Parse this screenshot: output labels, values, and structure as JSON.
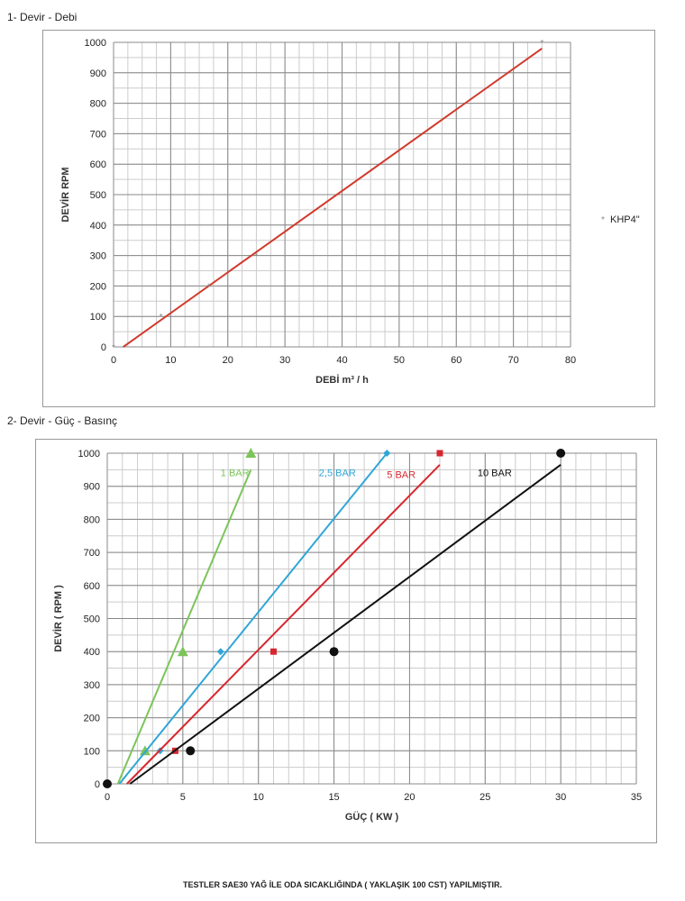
{
  "sections": {
    "s1": "1- Devir - Debi",
    "s2": "2- Devir - Güç - Basınç"
  },
  "footer": "TESTLER SAE30 YAĞ İLE ODA SICAKLIĞINDA ( YAKLAŞIK 100 CST) YAPILMIŞTIR.",
  "chart_data": [
    {
      "type": "scatter",
      "title": "",
      "xlabel": "DEBİ m³ / h",
      "ylabel": "DEVİR RPM",
      "xlim": [
        0,
        80
      ],
      "ylim": [
        0,
        1000
      ],
      "xticks": [
        0,
        10,
        20,
        30,
        40,
        50,
        60,
        70,
        80
      ],
      "yticks": [
        0,
        100,
        200,
        300,
        400,
        500,
        600,
        700,
        800,
        900,
        1000
      ],
      "grid": true,
      "legend": "right",
      "series": [
        {
          "name": "KHP4\"",
          "color": "#888888",
          "x": [
            0,
            8.3,
            16.7,
            25,
            37,
            75
          ],
          "y": [
            0,
            100,
            200,
            300,
            450,
            1000
          ],
          "trend": {
            "color": "#d03a2c",
            "x": [
              1.7,
              75
            ],
            "y": [
              0,
              980
            ]
          }
        }
      ]
    },
    {
      "type": "scatter",
      "title": "",
      "xlabel": "GÜÇ ( KW )",
      "ylabel": "DEVİR ( RPM )",
      "xlim": [
        0,
        35
      ],
      "ylim": [
        0,
        1000
      ],
      "xticks": [
        0,
        5,
        10,
        15,
        20,
        25,
        30,
        35
      ],
      "yticks": [
        0,
        100,
        200,
        300,
        400,
        500,
        600,
        700,
        800,
        900,
        1000
      ],
      "grid": true,
      "legend": "inline",
      "series": [
        {
          "name": "1 BAR",
          "color": "#7cc45a",
          "marker": "triangle",
          "x": [
            2.5,
            5,
            9.5
          ],
          "y": [
            100,
            400,
            1000
          ],
          "trend": {
            "x": [
              0.7,
              9.5
            ],
            "y": [
              0,
              950
            ]
          },
          "label_at": [
            7.5,
            930
          ]
        },
        {
          "name": "2,5 BAR",
          "color": "#2fa6d6",
          "marker": "diamond",
          "x": [
            3.5,
            7.5,
            18.5
          ],
          "y": [
            100,
            400,
            1000
          ],
          "trend": {
            "x": [
              0.8,
              18.5
            ],
            "y": [
              0,
              1000
            ]
          },
          "label_at": [
            14,
            930
          ]
        },
        {
          "name": "5 BAR",
          "color": "#d8262e",
          "marker": "square",
          "x": [
            4.5,
            11,
            22
          ],
          "y": [
            100,
            400,
            1000
          ],
          "trend": {
            "x": [
              1.3,
              22
            ],
            "y": [
              0,
              965
            ]
          },
          "label_at": [
            18.5,
            925
          ]
        },
        {
          "name": "10 BAR",
          "color": "#111111",
          "marker": "circle",
          "x": [
            0,
            5.5,
            15,
            30
          ],
          "y": [
            0,
            100,
            400,
            1000
          ],
          "trend": {
            "x": [
              1.5,
              30
            ],
            "y": [
              0,
              965
            ]
          },
          "label_at": [
            24.5,
            930
          ]
        }
      ]
    }
  ]
}
